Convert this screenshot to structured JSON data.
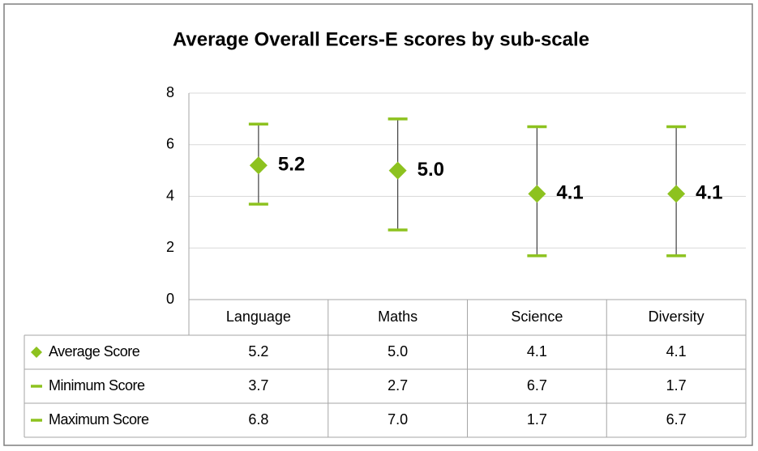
{
  "chart_data": {
    "type": "errorbar",
    "title": "Average Overall Ecers-E scores by sub-scale",
    "categories": [
      "Language",
      "Maths",
      "Science",
      "Diversity"
    ],
    "series": [
      {
        "name": "Average Score",
        "color": "#8dc21f",
        "values": [
          5.2,
          5.0,
          4.1,
          4.1
        ],
        "value_labels": [
          "5.2",
          "5.0",
          "4.1",
          "4.1"
        ]
      },
      {
        "name": "Minimum Score",
        "color": "#8dc21f",
        "values": [
          3.7,
          2.7,
          6.7,
          1.7
        ],
        "value_labels": [
          "3.7",
          "2.7",
          "6.7",
          "1.7"
        ]
      },
      {
        "name": "Maximum Score",
        "color": "#8dc21f",
        "values": [
          6.8,
          7.0,
          1.7,
          6.7
        ],
        "value_labels": [
          "6.8",
          "7.0",
          "1.7",
          "6.7"
        ]
      }
    ],
    "ylim": [
      0,
      8
    ],
    "yticks": [
      0,
      2,
      4,
      6,
      8
    ],
    "grid": true,
    "legend": "table"
  }
}
